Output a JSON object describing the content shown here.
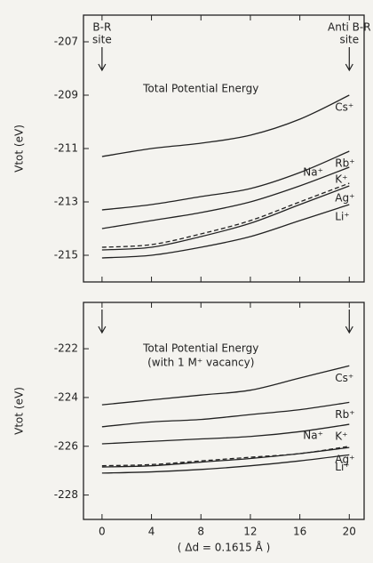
{
  "chart_data": [
    {
      "type": "line",
      "title": "Total Potential Energy",
      "y_label": "Vtot (eV)",
      "annotations": [
        {
          "lines": [
            "B-R",
            "site"
          ],
          "x": 0
        },
        {
          "lines": [
            "Anti B-R",
            "site"
          ],
          "x": 20
        }
      ],
      "arrows": [
        0,
        20
      ],
      "x": [
        0,
        4,
        8,
        12,
        16,
        20
      ],
      "xlim": [
        -1.5,
        21.2
      ],
      "xticks": [
        0,
        4,
        8,
        12,
        16,
        20
      ],
      "ylim": [
        -216,
        -206
      ],
      "yticks": [
        -207,
        -209,
        -211,
        -213,
        -215
      ],
      "grid": false,
      "series": [
        {
          "name": "Cs⁺",
          "color": "#222",
          "dashed": false,
          "values": [
            -211.3,
            -211.0,
            -210.8,
            -210.5,
            -209.9,
            -209.0
          ]
        },
        {
          "name": "Rb⁺",
          "color": "#222",
          "dashed": false,
          "values": [
            -213.3,
            -213.1,
            -212.8,
            -212.5,
            -211.9,
            -211.1
          ]
        },
        {
          "name": "K⁺",
          "color": "#222",
          "dashed": false,
          "values": [
            -214.0,
            -213.7,
            -213.4,
            -213.0,
            -212.4,
            -211.7
          ]
        },
        {
          "name": "Na⁺",
          "color": "#222",
          "dashed": true,
          "values": [
            -214.7,
            -214.6,
            -214.2,
            -213.7,
            -213.0,
            -212.3
          ]
        },
        {
          "name": "Ag⁺",
          "color": "#222",
          "dashed": false,
          "values": [
            -214.8,
            -214.7,
            -214.3,
            -213.8,
            -213.1,
            -212.4
          ]
        },
        {
          "name": "Li⁺",
          "color": "#222",
          "dashed": false,
          "values": [
            -215.1,
            -215.0,
            -214.7,
            -214.3,
            -213.7,
            -213.1
          ]
        }
      ]
    },
    {
      "type": "line",
      "title": "Total Potential Energy",
      "subtitle": "(with 1 M⁺ vacancy)",
      "y_label": "Vtot (eV)",
      "x_label": "( Δd = 0.1615 Å )",
      "arrows": [
        0,
        20
      ],
      "x": [
        0,
        4,
        8,
        12,
        16,
        20
      ],
      "xlim": [
        -1.5,
        21.2
      ],
      "xticks": [
        0,
        4,
        8,
        12,
        16,
        20
      ],
      "ylim": [
        -229,
        -220.1
      ],
      "yticks": [
        -222,
        -224,
        -226,
        -228
      ],
      "grid": false,
      "series": [
        {
          "name": "Cs⁺",
          "color": "#222",
          "dashed": false,
          "values": [
            -224.3,
            -224.1,
            -223.9,
            -223.7,
            -223.2,
            -222.7
          ]
        },
        {
          "name": "Rb⁺",
          "color": "#222",
          "dashed": false,
          "values": [
            -225.2,
            -225.0,
            -224.9,
            -224.7,
            -224.5,
            -224.2
          ]
        },
        {
          "name": "K⁺",
          "color": "#222",
          "dashed": false,
          "values": [
            -225.9,
            -225.8,
            -225.7,
            -225.6,
            -225.4,
            -225.1
          ]
        },
        {
          "name": "Na⁺",
          "color": "#222",
          "dashed": true,
          "values": [
            -226.8,
            -226.75,
            -226.6,
            -226.45,
            -226.3,
            -226.0
          ]
        },
        {
          "name": "Ag⁺",
          "color": "#222",
          "dashed": false,
          "values": [
            -226.85,
            -226.8,
            -226.65,
            -226.5,
            -226.3,
            -226.05
          ]
        },
        {
          "name": "Li⁺",
          "color": "#222",
          "dashed": false,
          "values": [
            -227.1,
            -227.05,
            -226.95,
            -226.8,
            -226.6,
            -226.35
          ]
        }
      ]
    }
  ]
}
